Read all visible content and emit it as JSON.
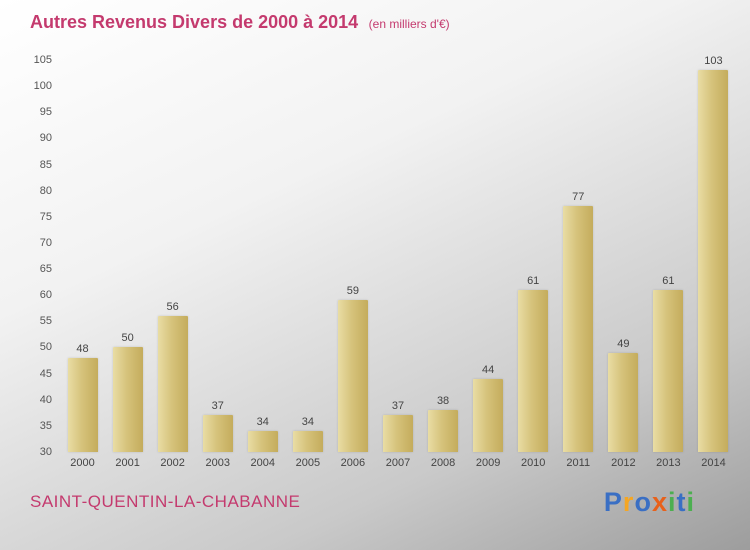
{
  "header": {
    "title": "Autres Revenus Divers de 2000 à 2014",
    "subtitle": "(en milliers d'€)"
  },
  "footer": {
    "commune": "SAINT-QUENTIN-LA-CHABANNE"
  },
  "logo": {
    "letters": [
      {
        "ch": "P",
        "color": "#3a6fc4"
      },
      {
        "ch": "r",
        "color": "#f5a623"
      },
      {
        "ch": "o",
        "color": "#3a6fc4"
      },
      {
        "ch": "x",
        "color": "#e8611a"
      },
      {
        "ch": "i",
        "color": "#4caf50"
      },
      {
        "ch": "t",
        "color": "#3a6fc4"
      },
      {
        "ch": "i",
        "color": "#4caf50"
      }
    ]
  },
  "colors": {
    "title": "#c43a6e",
    "bar_light": "#e9dda4",
    "bar_dark": "#c4ac5c",
    "tick_text": "#555555",
    "value_text": "#444444"
  },
  "chart_data": {
    "type": "bar",
    "title": "Autres Revenus Divers de 2000 à 2014",
    "subtitle": "(en milliers d'€)",
    "categories": [
      "2000",
      "2001",
      "2002",
      "2003",
      "2004",
      "2005",
      "2006",
      "2007",
      "2008",
      "2009",
      "2010",
      "2011",
      "2012",
      "2013",
      "2014"
    ],
    "values": [
      48,
      50,
      56,
      37,
      34,
      34,
      59,
      37,
      38,
      44,
      61,
      77,
      49,
      61,
      103
    ],
    "xlabel": "",
    "ylabel": "",
    "ylim": [
      30,
      105
    ],
    "ytick_step": 5,
    "grid": false,
    "legend": false
  }
}
